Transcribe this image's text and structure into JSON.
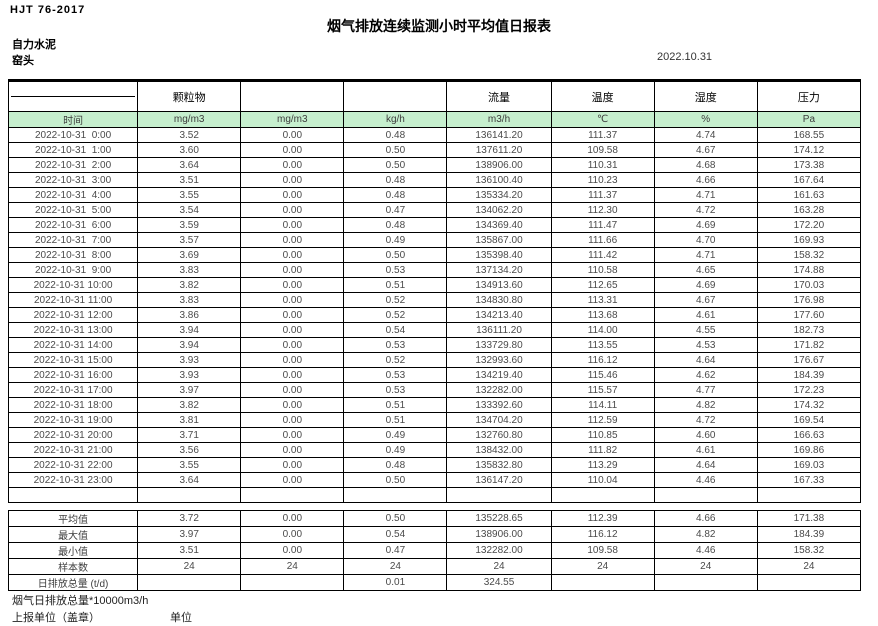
{
  "header": {
    "standard_code": "HJT 76-2017",
    "title": "烟气排放连续监测小时平均值日报表",
    "company": "自力水泥",
    "station": "窑头",
    "date": "2022.10.31"
  },
  "table": {
    "unit_row_bg": "#c6efce",
    "group_headers": [
      "",
      "颗粒物",
      "",
      "",
      "流量",
      "温度",
      "湿度",
      "压力"
    ],
    "unit_row": [
      "时间",
      "mg/m3",
      "mg/m3",
      "kg/h",
      "m3/h",
      "℃",
      "%",
      "Pa"
    ],
    "rows": [
      [
        "2022-10-31  0:00",
        "3.52",
        "0.00",
        "0.48",
        "136141.20",
        "111.37",
        "4.74",
        "168.55"
      ],
      [
        "2022-10-31  1:00",
        "3.60",
        "0.00",
        "0.50",
        "137611.20",
        "109.58",
        "4.67",
        "174.12"
      ],
      [
        "2022-10-31  2:00",
        "3.64",
        "0.00",
        "0.50",
        "138906.00",
        "110.31",
        "4.68",
        "173.38"
      ],
      [
        "2022-10-31  3:00",
        "3.51",
        "0.00",
        "0.48",
        "136100.40",
        "110.23",
        "4.66",
        "167.64"
      ],
      [
        "2022-10-31  4:00",
        "3.55",
        "0.00",
        "0.48",
        "135334.20",
        "111.37",
        "4.71",
        "161.63"
      ],
      [
        "2022-10-31  5:00",
        "3.54",
        "0.00",
        "0.47",
        "134062.20",
        "112.30",
        "4.72",
        "163.28"
      ],
      [
        "2022-10-31  6:00",
        "3.59",
        "0.00",
        "0.48",
        "134369.40",
        "111.47",
        "4.69",
        "172.20"
      ],
      [
        "2022-10-31  7:00",
        "3.57",
        "0.00",
        "0.49",
        "135867.00",
        "111.66",
        "4.70",
        "169.93"
      ],
      [
        "2022-10-31  8:00",
        "3.69",
        "0.00",
        "0.50",
        "135398.40",
        "111.42",
        "4.71",
        "158.32"
      ],
      [
        "2022-10-31  9:00",
        "3.83",
        "0.00",
        "0.53",
        "137134.20",
        "110.58",
        "4.65",
        "174.88"
      ],
      [
        "2022-10-31 10:00",
        "3.82",
        "0.00",
        "0.51",
        "134913.60",
        "112.65",
        "4.69",
        "170.03"
      ],
      [
        "2022-10-31 11:00",
        "3.83",
        "0.00",
        "0.52",
        "134830.80",
        "113.31",
        "4.67",
        "176.98"
      ],
      [
        "2022-10-31 12:00",
        "3.86",
        "0.00",
        "0.52",
        "134213.40",
        "113.68",
        "4.61",
        "177.60"
      ],
      [
        "2022-10-31 13:00",
        "3.94",
        "0.00",
        "0.54",
        "136111.20",
        "114.00",
        "4.55",
        "182.73"
      ],
      [
        "2022-10-31 14:00",
        "3.94",
        "0.00",
        "0.53",
        "133729.80",
        "113.55",
        "4.53",
        "171.82"
      ],
      [
        "2022-10-31 15:00",
        "3.93",
        "0.00",
        "0.52",
        "132993.60",
        "116.12",
        "4.64",
        "176.67"
      ],
      [
        "2022-10-31 16:00",
        "3.93",
        "0.00",
        "0.53",
        "134219.40",
        "115.46",
        "4.62",
        "184.39"
      ],
      [
        "2022-10-31 17:00",
        "3.97",
        "0.00",
        "0.53",
        "132282.00",
        "115.57",
        "4.77",
        "172.23"
      ],
      [
        "2022-10-31 18:00",
        "3.82",
        "0.00",
        "0.51",
        "133392.60",
        "114.11",
        "4.82",
        "174.32"
      ],
      [
        "2022-10-31 19:00",
        "3.81",
        "0.00",
        "0.51",
        "134704.20",
        "112.59",
        "4.72",
        "169.54"
      ],
      [
        "2022-10-31 20:00",
        "3.71",
        "0.00",
        "0.49",
        "132760.80",
        "110.85",
        "4.60",
        "166.63"
      ],
      [
        "2022-10-31 21:00",
        "3.56",
        "0.00",
        "0.49",
        "138432.00",
        "111.82",
        "4.61",
        "169.86"
      ],
      [
        "2022-10-31 22:00",
        "3.55",
        "0.00",
        "0.48",
        "135832.80",
        "113.29",
        "4.64",
        "169.03"
      ],
      [
        "2022-10-31 23:00",
        "3.64",
        "0.00",
        "0.50",
        "136147.20",
        "110.04",
        "4.46",
        "167.33"
      ]
    ],
    "summary_rows": [
      [
        "平均值",
        "3.72",
        "0.00",
        "0.50",
        "135228.65",
        "112.39",
        "4.66",
        "171.38"
      ],
      [
        "最大值",
        "3.97",
        "0.00",
        "0.54",
        "138906.00",
        "116.12",
        "4.82",
        "184.39"
      ],
      [
        "最小值",
        "3.51",
        "0.00",
        "0.47",
        "132282.00",
        "109.58",
        "4.46",
        "158.32"
      ],
      [
        "样本数",
        "24",
        "24",
        "24",
        "24",
        "24",
        "24",
        "24"
      ],
      [
        "日排放总量 (t/d)",
        "",
        "",
        "0.01",
        "324.55",
        "",
        "",
        ""
      ]
    ]
  },
  "footer": {
    "note": "烟气日排放总量*10000m3/h",
    "report_unit_label": "上报单位（盖章）",
    "unit_label": "单位"
  }
}
